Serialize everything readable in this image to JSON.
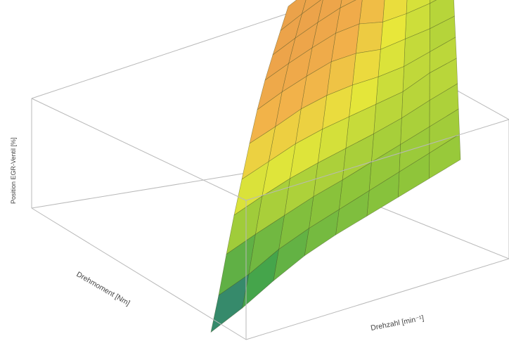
{
  "chart_data": {
    "type": "surface3d",
    "title": "",
    "xlabel": "Drehmoment [Nm]",
    "ylabel": "Drehzahl [min⁻¹]",
    "zlabel": "Position EGR-Ventil [%]",
    "grid": false,
    "colorscale": [
      "#1e4fb8",
      "#3fa24c",
      "#8fc53a",
      "#e8e83a",
      "#f2b14a",
      "#e89a4a"
    ],
    "x_grid_fraction": [
      0.0,
      0.125,
      0.25,
      0.375,
      0.5,
      0.625,
      0.75,
      0.875,
      1.0
    ],
    "y_grid_fraction": [
      0.0,
      0.1,
      0.2,
      0.3,
      0.4,
      0.5,
      0.6,
      0.7,
      0.8,
      0.9,
      1.0
    ],
    "z_level_fraction": [
      [
        0.05,
        0.18,
        0.35,
        0.5,
        0.62,
        0.74,
        0.84,
        0.9,
        0.92,
        0.93,
        0.94
      ],
      [
        0.12,
        0.22,
        0.38,
        0.52,
        0.63,
        0.74,
        0.85,
        0.9,
        0.92,
        0.93,
        0.93
      ],
      [
        0.22,
        0.3,
        0.4,
        0.53,
        0.64,
        0.75,
        0.84,
        0.89,
        0.91,
        0.92,
        0.92
      ],
      [
        0.3,
        0.34,
        0.42,
        0.52,
        0.62,
        0.72,
        0.82,
        0.87,
        0.89,
        0.9,
        0.9
      ],
      [
        0.34,
        0.36,
        0.42,
        0.5,
        0.58,
        0.66,
        0.74,
        0.8,
        0.84,
        0.86,
        0.87
      ],
      [
        0.36,
        0.38,
        0.43,
        0.48,
        0.54,
        0.58,
        0.62,
        0.66,
        0.72,
        0.78,
        0.8
      ],
      [
        0.38,
        0.4,
        0.44,
        0.47,
        0.5,
        0.52,
        0.56,
        0.58,
        0.6,
        0.64,
        0.66
      ],
      [
        0.4,
        0.42,
        0.45,
        0.48,
        0.52,
        0.5,
        0.5,
        0.52,
        0.54,
        0.56,
        0.58
      ],
      [
        0.42,
        0.44,
        0.46,
        0.48,
        0.5,
        0.48,
        0.46,
        0.48,
        0.5,
        0.52,
        0.54
      ]
    ]
  }
}
